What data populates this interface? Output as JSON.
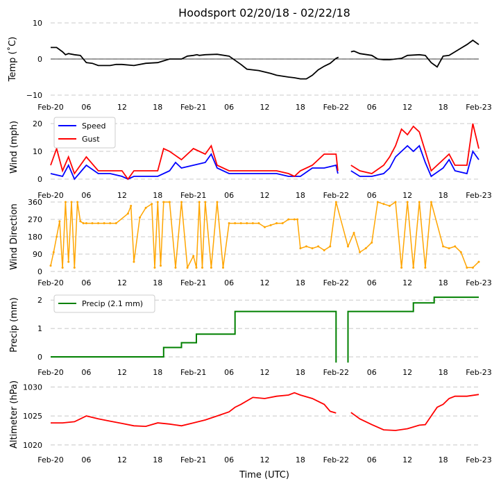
{
  "title": "Hoodsport 02/20/18 - 02/22/18",
  "xlabel": "Time (UTC)",
  "x_ticks": [
    "Feb-20",
    "06",
    "12",
    "18",
    "Feb-21",
    "06",
    "12",
    "18",
    "Feb-22",
    "06",
    "12",
    "18",
    "Feb-23"
  ],
  "chart_data": [
    {
      "type": "line",
      "ylabel": "Temp (˚C)",
      "ylim": [
        -10,
        10
      ],
      "y_ticks": [
        "10",
        "0",
        "−10"
      ],
      "grid": true,
      "legend": null,
      "x_hours": [
        0,
        1,
        2,
        2.5,
        3,
        4,
        5,
        6,
        7,
        8,
        9,
        10,
        11,
        12,
        14,
        16,
        18,
        19,
        20,
        22,
        23,
        24,
        24.6,
        25,
        26,
        28,
        30,
        32,
        33,
        35,
        37,
        38,
        40,
        41,
        42,
        43,
        44,
        45,
        46,
        47,
        48,
        48.4
      ],
      "series": [
        {
          "name": "Temp",
          "color": "#000000",
          "values": [
            3.2,
            3.2,
            2,
            1.2,
            1.5,
            1.2,
            1,
            -1,
            -1.2,
            -1.8,
            -1.8,
            -1.8,
            -1.5,
            -1.5,
            -1.8,
            -1.2,
            -1,
            -0.5,
            0,
            0,
            0.8,
            1,
            1.2,
            1,
            1.2,
            1.3,
            0.8,
            -1.5,
            -2.8,
            -3.2,
            -4,
            -4.5,
            -5,
            -5.2,
            -5.5,
            -5.5,
            -4.5,
            -3,
            -2,
            -1.2,
            0.2,
            0.5
          ]
        },
        {
          "name": "Temp (cont.)",
          "color": "#000000",
          "x": [
            50.5,
            51,
            52,
            54,
            55,
            56,
            57,
            58,
            59,
            60,
            62,
            63,
            64,
            65,
            66,
            67,
            68,
            69,
            70,
            71,
            72
          ],
          "values": [
            2,
            2.2,
            1.5,
            1,
            0,
            -0.2,
            -0.2,
            0,
            0.2,
            1,
            1.2,
            1,
            -1,
            -2.2,
            0.8,
            1,
            2,
            3,
            4,
            5.2,
            4
          ]
        }
      ]
    },
    {
      "type": "line",
      "ylabel": "Wind (mph)",
      "ylim": [
        0,
        23
      ],
      "y_ticks": [
        "20",
        "10",
        "0"
      ],
      "grid": true,
      "legend": "top-left",
      "series": [
        {
          "name": "Speed",
          "color": "#0000ff",
          "x": [
            0,
            2,
            3,
            4,
            6,
            8,
            10,
            12,
            13,
            14,
            16,
            18,
            20,
            21,
            22,
            24,
            26,
            27,
            28,
            30,
            32,
            34,
            36,
            38,
            40,
            41,
            42,
            44,
            46,
            48,
            48.3
          ],
          "values": [
            2,
            1,
            5,
            0,
            5,
            2,
            2,
            1,
            0,
            1,
            1,
            1,
            3,
            6,
            4,
            5,
            6,
            9,
            4,
            2,
            2,
            2,
            2,
            2,
            1,
            1,
            1,
            4,
            4,
            5,
            2
          ]
        },
        {
          "name": "Gust",
          "color": "#ff0000",
          "x": [
            0,
            1,
            2,
            3,
            4,
            6,
            8,
            10,
            12,
            13,
            14,
            16,
            18,
            19,
            20,
            22,
            24,
            26,
            27,
            28,
            30,
            32,
            34,
            36,
            38,
            40,
            41,
            42,
            44,
            46,
            48,
            48.3
          ],
          "values": [
            5,
            11,
            3,
            8,
            2,
            8,
            3,
            3,
            3,
            0,
            3,
            3,
            3,
            11,
            10,
            7,
            11,
            9,
            12,
            5,
            3,
            3,
            3,
            3,
            3,
            2,
            1,
            3,
            5,
            9,
            9,
            3
          ]
        },
        {
          "name": "Speed (cont.)",
          "color": "#0000ff",
          "x": [
            50.5,
            52,
            54,
            56,
            57,
            58,
            60,
            61,
            62,
            63,
            64,
            66,
            67,
            68,
            70,
            71,
            72
          ],
          "values": [
            3,
            1,
            1,
            2,
            4,
            8,
            12,
            10,
            12,
            6,
            1,
            4,
            7,
            3,
            2,
            10,
            7
          ]
        },
        {
          "name": "Gust (cont.)",
          "color": "#ff0000",
          "x": [
            50.5,
            52,
            54,
            56,
            57,
            58,
            59,
            60,
            61,
            62,
            63,
            64,
            65,
            66,
            67,
            68,
            70,
            71,
            72
          ],
          "values": [
            5,
            3,
            2,
            5,
            8,
            12,
            18,
            16,
            19,
            17,
            10,
            3,
            5,
            7,
            9,
            5,
            5,
            20,
            11
          ]
        }
      ]
    },
    {
      "type": "scatter",
      "ylabel": "Wind Direction",
      "ylim": [
        0,
        360
      ],
      "y_ticks": [
        "360",
        "270",
        "180",
        "90",
        "0"
      ],
      "grid": true,
      "legend": null,
      "series": [
        {
          "name": "Direction",
          "color": "#ffa500",
          "x": [
            0,
            0.5,
            1,
            1.5,
            2,
            2.5,
            3,
            3.5,
            4,
            4.5,
            5,
            5.5,
            6,
            7,
            8,
            9,
            10,
            11,
            13,
            13.5,
            14,
            15,
            16,
            17,
            17.5,
            18,
            18.5,
            19,
            20,
            21,
            22,
            23,
            24,
            24.5,
            25,
            25.5,
            26,
            27,
            28,
            29,
            30,
            31,
            32,
            33,
            34,
            35,
            36,
            37,
            38,
            39,
            40,
            41,
            41.5,
            42,
            43,
            44,
            45,
            46,
            47,
            48,
            50,
            51,
            52,
            53,
            54,
            55,
            56,
            57,
            58,
            59,
            60,
            61,
            62,
            63,
            64,
            66,
            67,
            68,
            69,
            70,
            71,
            72
          ],
          "values": [
            30,
            100,
            180,
            260,
            20,
            360,
            50,
            360,
            20,
            360,
            260,
            250,
            250,
            250,
            250,
            250,
            250,
            250,
            300,
            340,
            50,
            280,
            330,
            350,
            20,
            360,
            30,
            360,
            360,
            20,
            360,
            20,
            80,
            20,
            360,
            20,
            360,
            20,
            360,
            20,
            250,
            250,
            250,
            250,
            250,
            250,
            230,
            240,
            250,
            250,
            270,
            270,
            270,
            120,
            130,
            120,
            130,
            110,
            130,
            360,
            130,
            200,
            100,
            120,
            150,
            360,
            350,
            340,
            360,
            20,
            360,
            20,
            360,
            20,
            360,
            130,
            120,
            130,
            100,
            20,
            20,
            50
          ]
        }
      ]
    },
    {
      "type": "line",
      "ylabel": "Precip (mm)",
      "ylim": [
        0,
        2.25
      ],
      "y_ticks": [
        "2",
        "1",
        "0"
      ],
      "grid": true,
      "legend": "top-left",
      "legend_label": "Precip (2.1 mm)",
      "series": [
        {
          "name": "Precip (2.1 mm)",
          "color": "#008000",
          "x": [
            0,
            19,
            19,
            22,
            22,
            24.5,
            24.5,
            31,
            31,
            48,
            48
          ],
          "values": [
            0,
            0,
            0.33,
            0.33,
            0.5,
            0.5,
            0.8,
            0.8,
            1.6,
            1.6,
            -0.2
          ]
        },
        {
          "name": "Precip (cont.)",
          "color": "#008000",
          "x": [
            50,
            50,
            61,
            61,
            63,
            63,
            64.5,
            64.5,
            72
          ],
          "values": [
            -0.2,
            1.6,
            1.6,
            1.9,
            1.9,
            1.9,
            1.9,
            2.1,
            2.1
          ]
        }
      ]
    },
    {
      "type": "line",
      "ylabel": "Altimeter (hPa)",
      "ylim": [
        1019.5,
        1031
      ],
      "y_ticks": [
        "1030",
        "1025",
        "1020"
      ],
      "grid": true,
      "legend": null,
      "series": [
        {
          "name": "Altimeter",
          "color": "#ff0000",
          "x": [
            0,
            2,
            4,
            5,
            6,
            8,
            10,
            12,
            14,
            16,
            18,
            20,
            22,
            24,
            26,
            28,
            30,
            31,
            32,
            34,
            36,
            38,
            40,
            41,
            42,
            44,
            46,
            47,
            48
          ],
          "values": [
            1023.8,
            1023.8,
            1024,
            1024.5,
            1025,
            1024.5,
            1024.1,
            1023.7,
            1023.3,
            1023.2,
            1023.8,
            1023.6,
            1023.3,
            1023.8,
            1024.3,
            1025,
            1025.7,
            1026.5,
            1027,
            1028.2,
            1028,
            1028.4,
            1028.6,
            1029,
            1028.6,
            1028,
            1027,
            1025.8,
            1025.5
          ]
        },
        {
          "name": "Altimeter (cont.)",
          "color": "#ff0000",
          "x": [
            50.5,
            52,
            54,
            56,
            58,
            60,
            62,
            63,
            64,
            65,
            66,
            67,
            68,
            70,
            72
          ],
          "values": [
            1025.6,
            1024.5,
            1023.5,
            1022.6,
            1022.5,
            1022.8,
            1023.4,
            1023.5,
            1025,
            1026.5,
            1027,
            1028,
            1028.4,
            1028.4,
            1028.7
          ]
        }
      ]
    }
  ]
}
